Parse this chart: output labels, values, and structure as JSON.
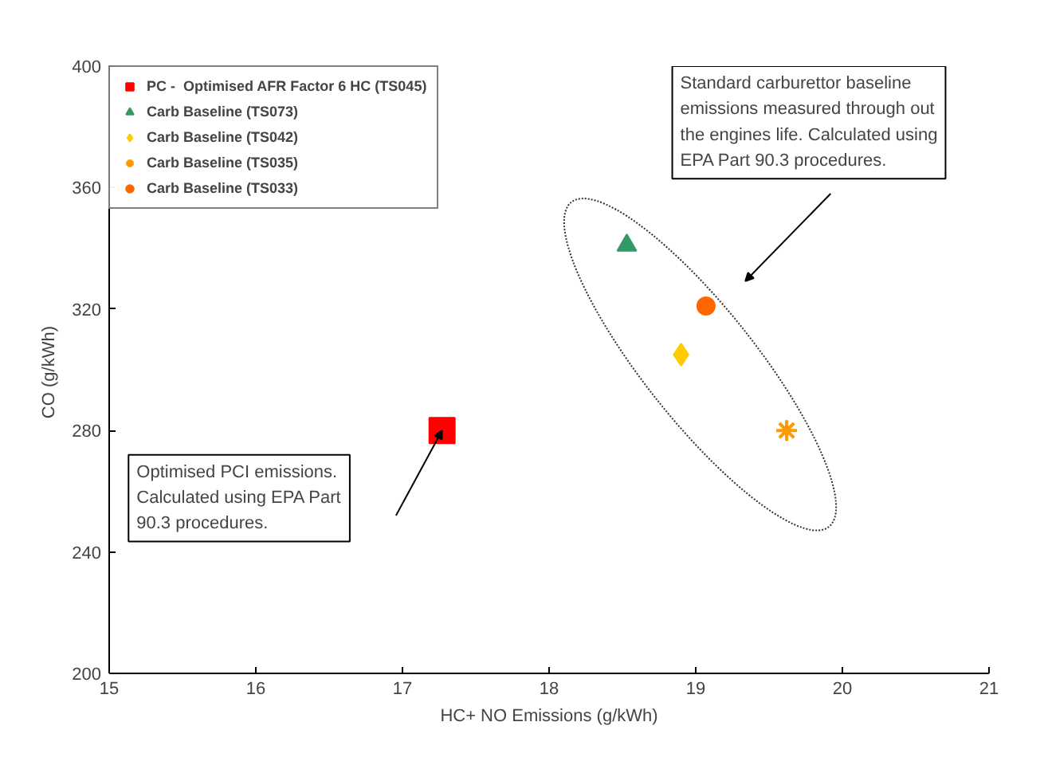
{
  "chart_data": {
    "type": "scatter",
    "xlabel": "HC+ NO Emissions (g/kWh)",
    "ylabel": "CO  (g/kWh)",
    "xlim": [
      15,
      21
    ],
    "xticks": [
      15,
      16,
      17,
      18,
      19,
      20,
      21
    ],
    "ylim": [
      200,
      400
    ],
    "yticks": [
      200,
      240,
      280,
      320,
      360,
      400
    ],
    "grid": false,
    "legend": "top left",
    "series": [
      {
        "name": "PC -  Optimised AFR Factor 6 HC (TS045)",
        "color": "#ff0000",
        "marker": "square",
        "x": [
          17.27
        ],
        "values": [
          280
        ]
      },
      {
        "name": "Carb Baseline (TS073)",
        "color": "#339966",
        "marker": "triangle",
        "x": [
          18.53
        ],
        "values": [
          341
        ]
      },
      {
        "name": "Carb Baseline (TS042)",
        "color": "#ffcc00",
        "marker": "diamond",
        "x": [
          18.9
        ],
        "values": [
          305
        ]
      },
      {
        "name": "Carb Baseline (TS035)",
        "color": "#ff9900",
        "marker": "cross",
        "x": [
          19.62
        ],
        "values": [
          280
        ]
      },
      {
        "name": "Carb Baseline (TS033)",
        "color": "#ff6600",
        "marker": "circle",
        "x": [
          19.07
        ],
        "values": [
          321
        ]
      }
    ],
    "annotations": [
      "Optimised PCI emissions.\nCalculated using EPA Part\n90.3 procedures.",
      "Standard carburettor baseline\nemissions measured through out\nthe engines life. Calculated using\nEPA Part 90.3 procedures."
    ]
  }
}
